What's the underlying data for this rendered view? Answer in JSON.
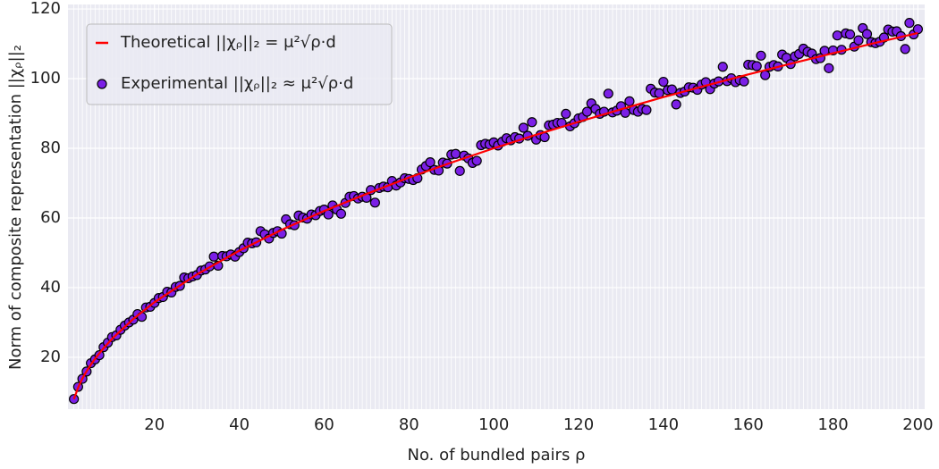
{
  "chart_data": {
    "type": "scatter",
    "xlabel": "No. of bundled pairs ρ",
    "ylabel": "Norm of composite representation ||χᵨ||₂",
    "xlim": [
      -0.4,
      201.6
    ],
    "ylim": [
      5.1,
      121.3
    ],
    "xticks": [
      20,
      40,
      60,
      80,
      100,
      120,
      140,
      160,
      180,
      200
    ],
    "yticks": [
      20,
      40,
      60,
      80,
      100,
      120
    ],
    "grid": true,
    "minor_grid": true,
    "legend": "upper left",
    "series": [
      {
        "name": "Theoretical ||χᵨ||₂ = μ²√ρ·d",
        "type": "line",
        "color": "#ff0000",
        "x": [
          1,
          2,
          3,
          4,
          5,
          6,
          8,
          10,
          15,
          20,
          30,
          40,
          50,
          60,
          70,
          80,
          90,
          100,
          110,
          120,
          130,
          140,
          150,
          160,
          170,
          180,
          190,
          200
        ],
        "values": [
          8.0,
          11.3,
          13.9,
          16.0,
          17.9,
          19.6,
          22.6,
          25.3,
          31.0,
          35.8,
          43.8,
          50.6,
          56.6,
          62.0,
          66.9,
          71.6,
          75.9,
          80.0,
          83.9,
          87.6,
          91.2,
          94.7,
          98.0,
          101.2,
          104.3,
          107.3,
          110.3,
          113.1
        ]
      },
      {
        "name": "Experimental ||χᵨ||₂ ≈ μ²√ρ·d",
        "type": "scatter",
        "color": "#7b1fe6",
        "x": [
          1,
          2,
          3,
          4,
          5,
          6,
          7,
          8,
          9,
          10,
          11,
          12,
          13,
          14,
          15,
          16,
          17,
          18,
          19,
          20,
          21,
          22,
          23,
          24,
          25,
          26,
          27,
          28,
          29,
          30,
          31,
          32,
          33,
          34,
          35,
          36,
          37,
          38,
          39,
          40,
          41,
          42,
          43,
          44,
          45,
          46,
          47,
          48,
          49,
          50,
          51,
          52,
          53,
          54,
          55,
          56,
          57,
          58,
          59,
          60,
          61,
          62,
          63,
          64,
          65,
          66,
          67,
          68,
          69,
          70,
          71,
          72,
          73,
          74,
          75,
          76,
          77,
          78,
          79,
          80,
          81,
          82,
          83,
          84,
          85,
          86,
          87,
          88,
          89,
          90,
          91,
          92,
          93,
          94,
          95,
          96,
          97,
          98,
          99,
          100,
          101,
          102,
          103,
          104,
          105,
          106,
          107,
          108,
          109,
          110,
          111,
          112,
          113,
          114,
          115,
          116,
          117,
          118,
          119,
          120,
          121,
          122,
          123,
          124,
          125,
          126,
          127,
          128,
          129,
          130,
          131,
          132,
          133,
          134,
          135,
          136,
          137,
          138,
          139,
          140,
          141,
          142,
          143,
          144,
          145,
          146,
          147,
          148,
          149,
          150,
          151,
          152,
          153,
          154,
          155,
          156,
          157,
          158,
          159,
          160,
          161,
          162,
          163,
          164,
          165,
          166,
          167,
          168,
          169,
          170,
          171,
          172,
          173,
          174,
          175,
          176,
          177,
          178,
          179,
          180,
          181,
          182,
          183,
          184,
          185,
          186,
          187,
          188,
          189,
          190,
          191,
          192,
          193,
          194,
          195,
          196,
          197,
          198,
          199,
          200
        ],
        "values": [
          8.0,
          11.5,
          13.8,
          15.9,
          18.3,
          19.4,
          20.6,
          22.9,
          24.2,
          25.8,
          26.3,
          27.9,
          29.1,
          30.0,
          30.8,
          32.4,
          31.6,
          34.3,
          34.5,
          35.6,
          37.0,
          37.3,
          38.8,
          38.6,
          40.2,
          40.5,
          42.9,
          42.7,
          43.2,
          43.6,
          44.9,
          45.2,
          46.1,
          48.9,
          46.3,
          49.1,
          49.0,
          49.5,
          48.9,
          50.2,
          51.3,
          52.9,
          52.7,
          53.0,
          56.2,
          55.3,
          54.1,
          55.7,
          56.2,
          55.5,
          59.6,
          58.2,
          57.9,
          60.7,
          60.1,
          59.8,
          61.0,
          60.8,
          62.0,
          62.4,
          61.0,
          63.6,
          62.4,
          61.2,
          64.3,
          66.1,
          66.3,
          65.6,
          66.1,
          65.8,
          68.0,
          64.4,
          68.6,
          69.0,
          68.8,
          70.6,
          69.3,
          70.2,
          71.4,
          71.2,
          70.9,
          71.4,
          73.9,
          74.9,
          76.0,
          73.8,
          73.6,
          75.9,
          75.6,
          78.2,
          78.4,
          73.5,
          77.9,
          77.1,
          75.8,
          76.4,
          80.9,
          81.3,
          81.1,
          81.7,
          80.8,
          81.9,
          82.9,
          82.3,
          83.2,
          82.8,
          85.9,
          83.6,
          87.5,
          82.5,
          83.8,
          83.2,
          86.6,
          86.8,
          87.3,
          87.3,
          89.9,
          86.3,
          87.2,
          88.6,
          89.0,
          90.5,
          92.9,
          91.3,
          89.9,
          90.5,
          95.7,
          90.3,
          90.8,
          92.1,
          90.2,
          93.5,
          91.0,
          90.5,
          91.3,
          91.0,
          97.1,
          96.0,
          95.8,
          99.1,
          96.7,
          96.9,
          92.6,
          95.9,
          96.3,
          97.5,
          97.4,
          96.8,
          98.3,
          99.0,
          97.0,
          98.6,
          99.2,
          103.4,
          99.3,
          100.1,
          99.0,
          99.6,
          99.2,
          104.0,
          103.9,
          103.6,
          106.6,
          101.0,
          103.4,
          103.9,
          103.5,
          106.9,
          106.0,
          104.2,
          106.4,
          107.1,
          108.6,
          107.7,
          107.2,
          105.6,
          105.9,
          108.0,
          103.0,
          108.1,
          112.4,
          108.3,
          113.0,
          112.7,
          109.2,
          111.0,
          114.5,
          112.8,
          110.5,
          110.2,
          110.6,
          111.8,
          114.1,
          113.5,
          113.6,
          112.2,
          108.5,
          116.0,
          112.7,
          114.2
        ]
      }
    ]
  }
}
